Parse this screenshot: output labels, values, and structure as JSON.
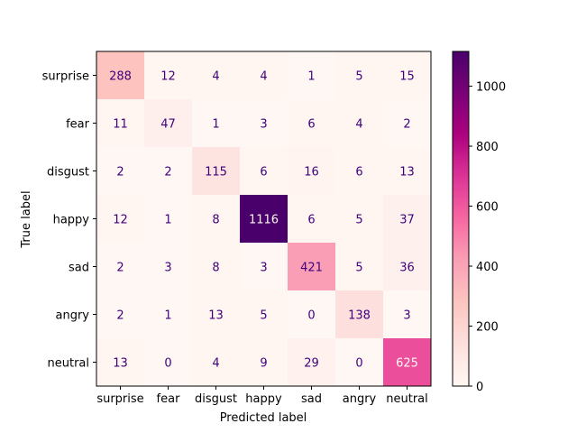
{
  "chart_data": {
    "type": "heatmap",
    "title": "",
    "xlabel": "Predicted label",
    "ylabel": "True label",
    "x_categories": [
      "surprise",
      "fear",
      "disgust",
      "happy",
      "sad",
      "angry",
      "neutral"
    ],
    "y_categories": [
      "surprise",
      "fear",
      "disgust",
      "happy",
      "sad",
      "angry",
      "neutral"
    ],
    "values": [
      [
        288,
        12,
        4,
        4,
        1,
        5,
        15
      ],
      [
        11,
        47,
        1,
        3,
        6,
        4,
        2
      ],
      [
        2,
        2,
        115,
        6,
        16,
        6,
        13
      ],
      [
        12,
        1,
        8,
        1116,
        6,
        5,
        37
      ],
      [
        2,
        3,
        8,
        3,
        421,
        5,
        36
      ],
      [
        2,
        1,
        13,
        5,
        0,
        138,
        3
      ],
      [
        13,
        0,
        4,
        9,
        29,
        0,
        625
      ]
    ],
    "colormap": "RdPu",
    "vmin": 0,
    "vmax": 1116,
    "colorbar_ticks": [
      0,
      200,
      400,
      600,
      800,
      1000
    ],
    "colors": {
      "low": "#fff7f3",
      "high": "#49006a",
      "text_dark": "#3f007d",
      "text_light": "#fff7f3"
    }
  }
}
